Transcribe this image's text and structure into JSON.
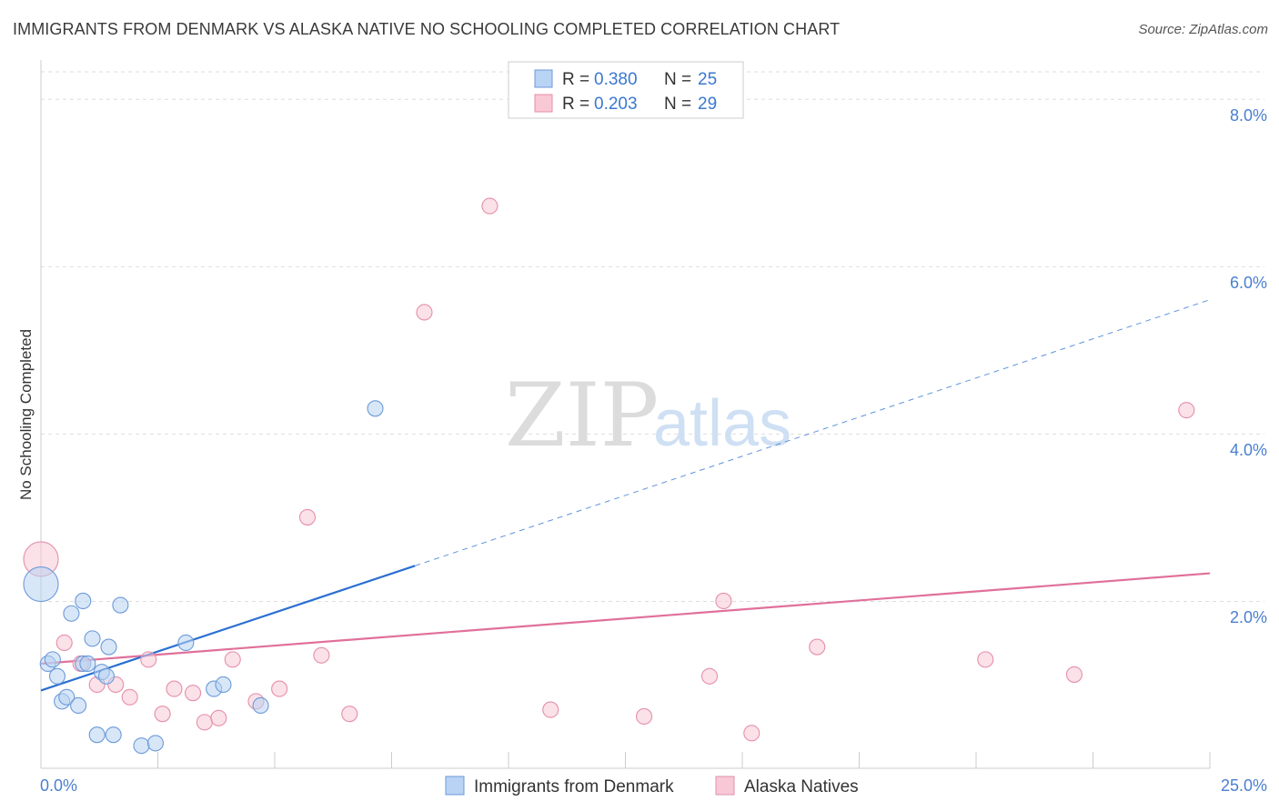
{
  "title": "IMMIGRANTS FROM DENMARK VS ALASKA NATIVE NO SCHOOLING COMPLETED CORRELATION CHART",
  "source": "Source: ZipAtlas.com",
  "watermark": {
    "zip": "ZIP",
    "atlas": "atlas"
  },
  "colors": {
    "blue_fill": "#b8d3f3",
    "blue_stroke": "#6c9ad8",
    "blue_line": "#2a6fd1",
    "pink_fill": "#f8c8d6",
    "pink_stroke": "#e58fab",
    "pink_line": "#e0709a",
    "grid": "#dddddd",
    "axis_text": "#4a7fd0"
  },
  "chart_data": {
    "type": "scatter",
    "title": "IMMIGRANTS FROM DENMARK VS ALASKA NATIVE NO SCHOOLING COMPLETED CORRELATION CHART",
    "xlabel": "",
    "ylabel": "No Schooling Completed",
    "xlim": [
      0,
      25
    ],
    "ylim": [
      0,
      8.4
    ],
    "x_ticks": [
      0,
      2.5,
      5,
      7.5,
      10,
      12.5,
      15,
      17.5,
      20,
      22.5,
      25
    ],
    "x_tick_labels": {
      "0": "0.0%",
      "25": "25.0%"
    },
    "y_ticks": [
      2,
      4,
      6,
      8
    ],
    "y_tick_labels": [
      "2.0%",
      "4.0%",
      "6.0%",
      "8.0%"
    ],
    "legend": [
      {
        "r_label": "R = ",
        "r_value": "0.380",
        "n_label": "N = ",
        "n_value": "25"
      },
      {
        "r_label": "R = ",
        "r_value": "0.203",
        "n_label": "N = ",
        "n_value": "29"
      }
    ],
    "series": [
      {
        "name": "Immigrants from Denmark",
        "color": "blue",
        "points": [
          {
            "x": 0.0,
            "y": 2.2,
            "size": "large"
          },
          {
            "x": 0.15,
            "y": 1.25
          },
          {
            "x": 0.25,
            "y": 1.3
          },
          {
            "x": 0.35,
            "y": 1.1
          },
          {
            "x": 0.45,
            "y": 0.8
          },
          {
            "x": 0.55,
            "y": 0.85
          },
          {
            "x": 0.65,
            "y": 1.85
          },
          {
            "x": 0.8,
            "y": 0.75
          },
          {
            "x": 0.9,
            "y": 1.25
          },
          {
            "x": 0.9,
            "y": 2.0
          },
          {
            "x": 1.0,
            "y": 1.25
          },
          {
            "x": 1.1,
            "y": 1.55
          },
          {
            "x": 1.2,
            "y": 0.4
          },
          {
            "x": 1.3,
            "y": 1.15
          },
          {
            "x": 1.4,
            "y": 1.1
          },
          {
            "x": 1.45,
            "y": 1.45
          },
          {
            "x": 1.55,
            "y": 0.4
          },
          {
            "x": 1.7,
            "y": 1.95
          },
          {
            "x": 2.15,
            "y": 0.27
          },
          {
            "x": 2.45,
            "y": 0.3
          },
          {
            "x": 3.1,
            "y": 1.5
          },
          {
            "x": 3.7,
            "y": 0.95
          },
          {
            "x": 3.9,
            "y": 1.0
          },
          {
            "x": 4.7,
            "y": 0.75
          },
          {
            "x": 7.15,
            "y": 4.3
          }
        ],
        "trend": {
          "x0": 0,
          "y0": 0.93,
          "x1": 8.0,
          "y1": 2.42,
          "dashed_to_x": 25,
          "dashed_to_y": 5.6
        }
      },
      {
        "name": "Alaska Natives",
        "color": "pink",
        "points": [
          {
            "x": 0.0,
            "y": 2.5,
            "size": "large"
          },
          {
            "x": 0.5,
            "y": 1.5
          },
          {
            "x": 0.85,
            "y": 1.25
          },
          {
            "x": 1.2,
            "y": 1.0
          },
          {
            "x": 1.6,
            "y": 1.0
          },
          {
            "x": 1.9,
            "y": 0.85
          },
          {
            "x": 2.3,
            "y": 1.3
          },
          {
            "x": 2.6,
            "y": 0.65
          },
          {
            "x": 2.85,
            "y": 0.95
          },
          {
            "x": 3.25,
            "y": 0.9
          },
          {
            "x": 3.5,
            "y": 0.55
          },
          {
            "x": 3.8,
            "y": 0.6
          },
          {
            "x": 4.1,
            "y": 1.3
          },
          {
            "x": 4.6,
            "y": 0.8
          },
          {
            "x": 5.1,
            "y": 0.95
          },
          {
            "x": 5.7,
            "y": 3.0
          },
          {
            "x": 6.0,
            "y": 1.35
          },
          {
            "x": 6.6,
            "y": 0.65
          },
          {
            "x": 8.2,
            "y": 5.45
          },
          {
            "x": 9.6,
            "y": 6.72
          },
          {
            "x": 10.9,
            "y": 0.7
          },
          {
            "x": 12.9,
            "y": 0.62
          },
          {
            "x": 14.3,
            "y": 1.1
          },
          {
            "x": 14.6,
            "y": 2.0
          },
          {
            "x": 15.2,
            "y": 0.42
          },
          {
            "x": 16.6,
            "y": 1.45
          },
          {
            "x": 20.2,
            "y": 1.3
          },
          {
            "x": 22.1,
            "y": 1.12
          },
          {
            "x": 24.5,
            "y": 4.28
          }
        ],
        "trend": {
          "x0": 0,
          "y0": 1.25,
          "x1": 25,
          "y1": 2.33
        }
      }
    ]
  }
}
